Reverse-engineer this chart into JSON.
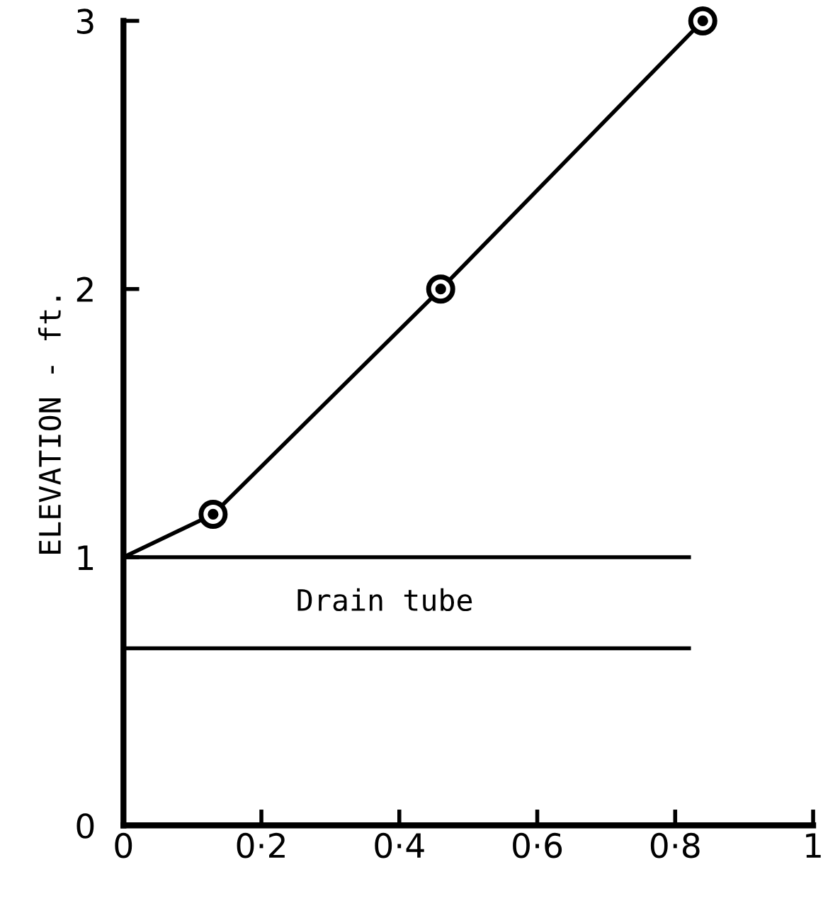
{
  "chart_data": {
    "type": "line",
    "ylabel": "ELEVATION - ft.",
    "series": [
      {
        "x": [
          0,
          0.13,
          0.46,
          0.84
        ],
        "values": [
          1.0,
          1.16,
          2.0,
          3.0
        ],
        "color": "#000000"
      },
      {
        "type": "scatter",
        "x": [
          0.13,
          0.46,
          0.84
        ],
        "values": [
          1.16,
          2.0,
          3.0
        ],
        "color": "#000000",
        "marker": "circle"
      },
      {
        "x": [
          0,
          0.82
        ],
        "values": [
          1.0,
          1.0
        ],
        "color": "#000000",
        "marker": "none"
      },
      {
        "x": [
          0,
          0.82
        ],
        "values": [
          0.66,
          0.66
        ],
        "color": "#000000",
        "marker": "none"
      }
    ],
    "annotations": [
      "Drain tube"
    ],
    "xlim": [
      0,
      1
    ],
    "ylim": [
      0,
      3
    ],
    "xticks": [
      0,
      {
        "value": 0.2,
        "label": "0·2"
      },
      {
        "value": 0.4,
        "label": "0·4"
      },
      {
        "value": 0.6,
        "label": "0·6"
      },
      {
        "value": 0.8,
        "label": "0·8"
      },
      1
    ],
    "yticks": [
      0,
      1,
      2,
      3
    ],
    "grid": false,
    "legend": false,
    "line_style": "solid"
  }
}
